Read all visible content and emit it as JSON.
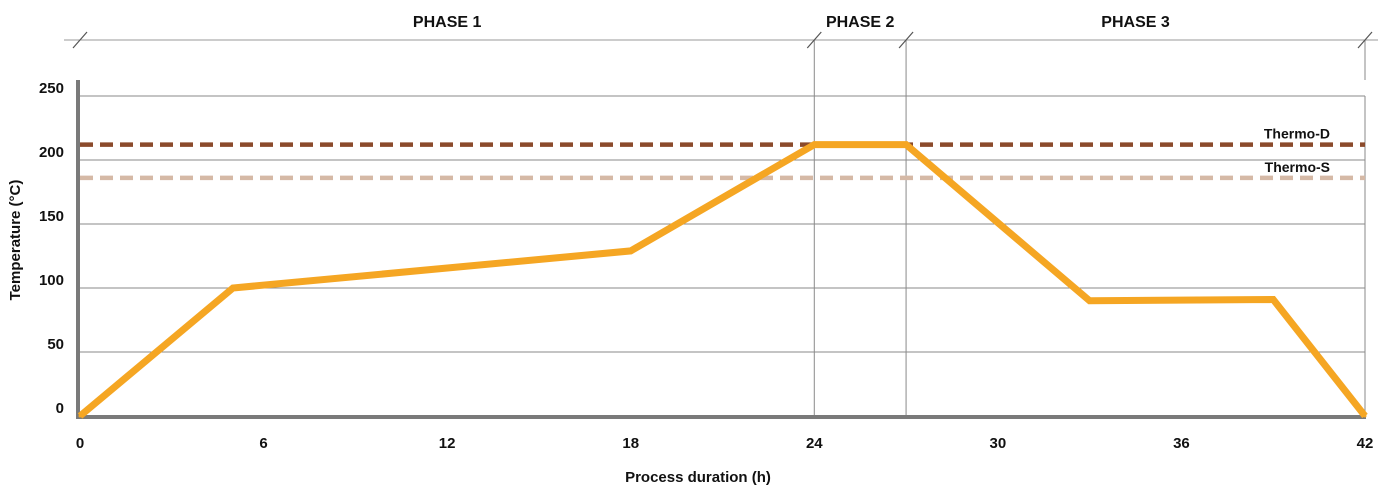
{
  "chart_data": {
    "type": "line",
    "xlabel": "Process duration (h)",
    "ylabel": "Temperature (°C)",
    "xlim": [
      0,
      42
    ],
    "ylim": [
      0,
      250
    ],
    "x_ticks": [
      0,
      6,
      12,
      18,
      24,
      30,
      36,
      42
    ],
    "y_ticks": [
      0,
      50,
      100,
      150,
      200,
      250
    ],
    "grid": "horizontal",
    "phases": [
      {
        "label": "PHASE 1",
        "start": 0,
        "end": 24
      },
      {
        "label": "PHASE 2",
        "start": 24,
        "end": 27
      },
      {
        "label": "PHASE 3",
        "start": 27,
        "end": 42
      }
    ],
    "series": [
      {
        "points": [
          [
            0,
            0
          ],
          [
            5,
            100
          ],
          [
            18,
            129
          ],
          [
            24,
            212
          ],
          [
            27,
            212
          ],
          [
            33,
            90
          ],
          [
            39,
            91
          ],
          [
            42,
            0
          ]
        ],
        "color": "#F5A623"
      }
    ],
    "reference_lines": [
      {
        "label": "Thermo-D",
        "y": 212,
        "color": "#8B4A2B",
        "style": "dashed"
      },
      {
        "label": "Thermo-S",
        "y": 186,
        "color": "#D5B9A6",
        "style": "dashed"
      }
    ]
  }
}
